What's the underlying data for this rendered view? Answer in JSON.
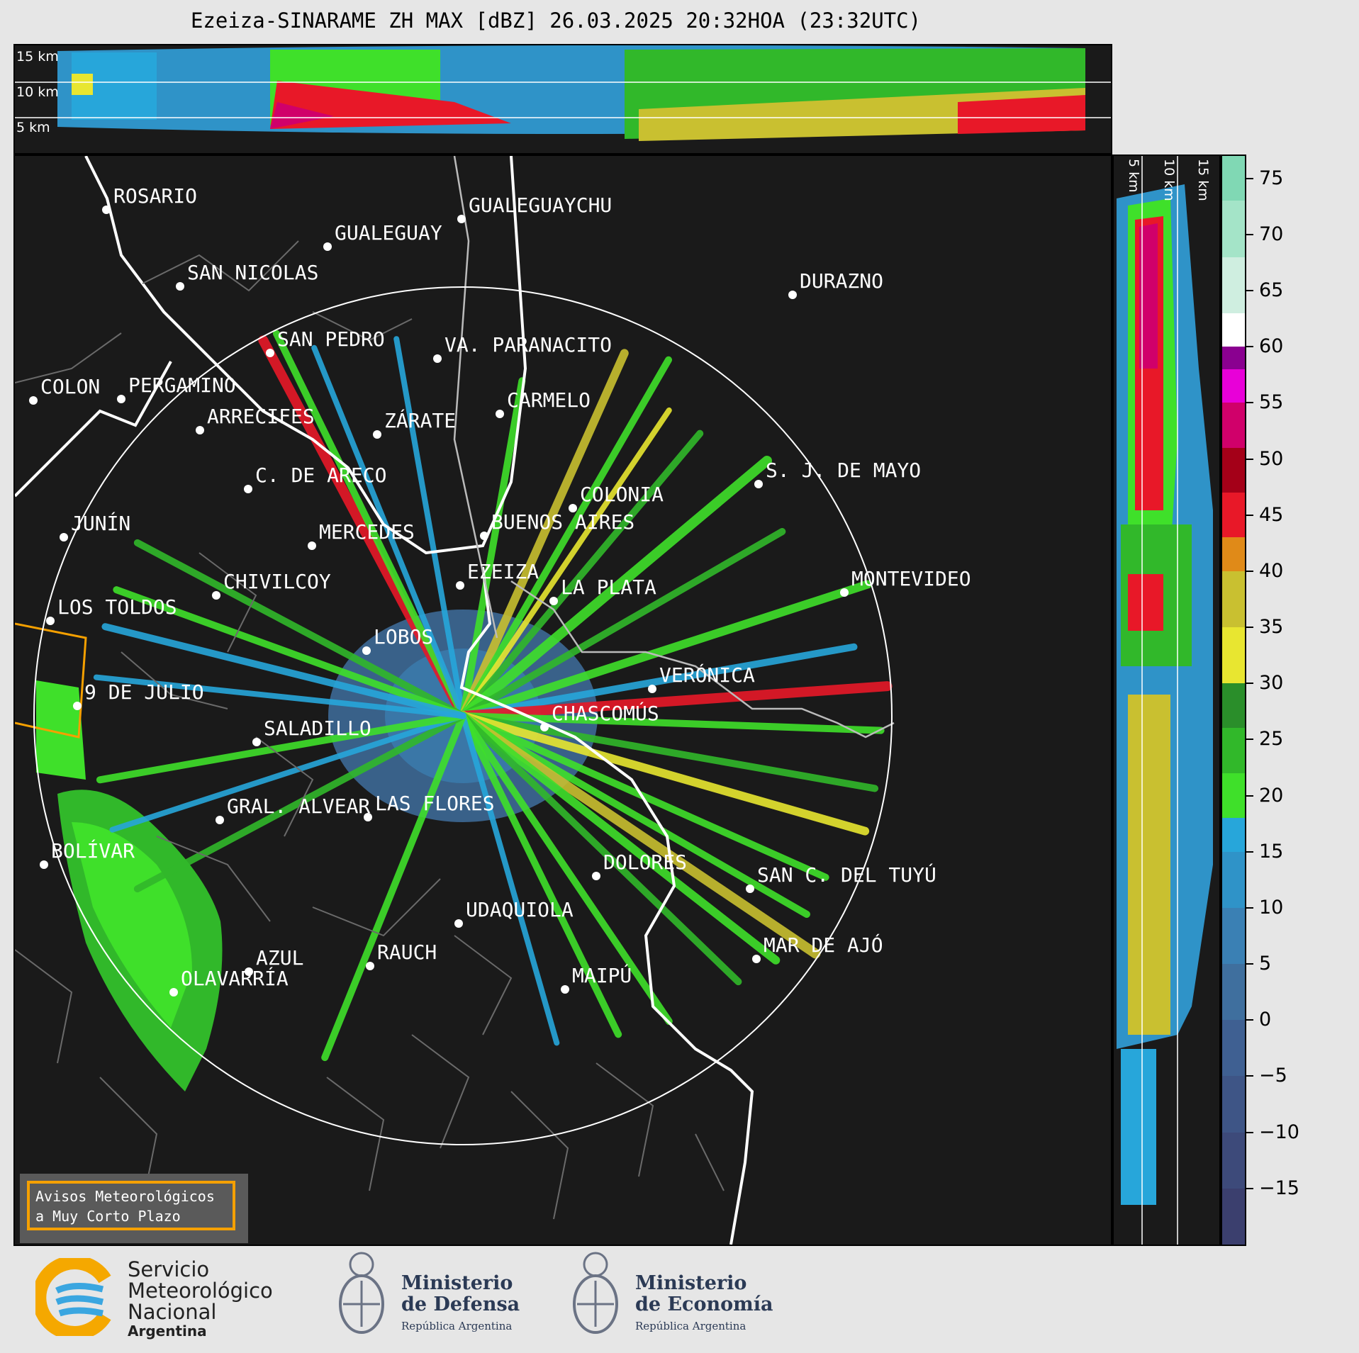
{
  "title": "Ezeiza-SINARAME ZH MAX [dBZ] 26.03.2025 20:32HOA (23:32UTC)",
  "top_panel": {
    "height_labels": [
      "15 km",
      "10 km",
      "5 km"
    ]
  },
  "side_panel": {
    "height_labels": [
      "5 km",
      "10 km",
      "15 km"
    ]
  },
  "colorbar": {
    "unit": "dBZ",
    "tick_labels": [
      "75",
      "70",
      "65",
      "60",
      "55",
      "50",
      "45",
      "40",
      "35",
      "30",
      "25",
      "20",
      "15",
      "10",
      "5",
      "0",
      "−5",
      "−10",
      "−15"
    ],
    "min": -20,
    "max": 77,
    "stops": [
      {
        "from": -20,
        "color": "#3b3f6e"
      },
      {
        "from": -15,
        "color": "#3d4a7a"
      },
      {
        "from": -10,
        "color": "#3e5586"
      },
      {
        "from": -5,
        "color": "#3f6092"
      },
      {
        "from": 0,
        "color": "#3f6f9e"
      },
      {
        "from": 5,
        "color": "#3a80b4"
      },
      {
        "from": 10,
        "color": "#2f93c8"
      },
      {
        "from": 15,
        "color": "#27a6da"
      },
      {
        "from": 18,
        "color": "#3fe02a"
      },
      {
        "from": 22,
        "color": "#31b82a"
      },
      {
        "from": 26,
        "color": "#2a8e2a"
      },
      {
        "from": 30,
        "color": "#e8e630"
      },
      {
        "from": 35,
        "color": "#c9c030"
      },
      {
        "from": 40,
        "color": "#e08a18"
      },
      {
        "from": 43,
        "color": "#e81828"
      },
      {
        "from": 47,
        "color": "#a40018"
      },
      {
        "from": 51,
        "color": "#d0006a"
      },
      {
        "from": 55,
        "color": "#e800d8"
      },
      {
        "from": 58,
        "color": "#8a0090"
      },
      {
        "from": 60,
        "color": "#ffffff"
      },
      {
        "from": 63,
        "color": "#cfeee0"
      },
      {
        "from": 68,
        "color": "#a4e4c8"
      },
      {
        "from": 73,
        "color": "#80d8b4"
      }
    ]
  },
  "cities": [
    {
      "name": "ROSARIO"
    },
    {
      "name": "GUALEGUAYCHU"
    },
    {
      "name": "GUALEGUAY"
    },
    {
      "name": "SAN NICOLAS"
    },
    {
      "name": "DURAZNO"
    },
    {
      "name": "SAN PEDRO"
    },
    {
      "name": "VA. PARANACITO"
    },
    {
      "name": "COLON"
    },
    {
      "name": "PERGAMINO"
    },
    {
      "name": "CARMELO"
    },
    {
      "name": "ARRECIFES"
    },
    {
      "name": "ZÁRATE"
    },
    {
      "name": "S. J. DE MAYO"
    },
    {
      "name": "C. DE ARECO"
    },
    {
      "name": "COLONIA"
    },
    {
      "name": "JUNÍN"
    },
    {
      "name": "BUENOS AIRES"
    },
    {
      "name": "MERCEDES"
    },
    {
      "name": "MONTEVIDEO"
    },
    {
      "name": "EZEIZA"
    },
    {
      "name": "CHIVILCOY"
    },
    {
      "name": "LA PLATA"
    },
    {
      "name": "LOS TOLDOS"
    },
    {
      "name": "LOBOS"
    },
    {
      "name": "VERÓNICA"
    },
    {
      "name": "9 DE JULIO"
    },
    {
      "name": "CHASCOMÚS"
    },
    {
      "name": "SALADILLO"
    },
    {
      "name": "GRAL. ALVEAR"
    },
    {
      "name": "LAS FLORES"
    },
    {
      "name": "BOLÍVAR"
    },
    {
      "name": "DOLORES"
    },
    {
      "name": "SAN C. DEL TUYÚ"
    },
    {
      "name": "UDAQUIOLA"
    },
    {
      "name": "MAR DE AJÓ"
    },
    {
      "name": "AZUL"
    },
    {
      "name": "RAUCH"
    },
    {
      "name": "OLAVARRÍA"
    },
    {
      "name": "MAIPÚ"
    }
  ],
  "alert_box": {
    "line1": "Avisos Meteorológicos",
    "line2": "a Muy Corto Plazo"
  },
  "footer": {
    "smn_line1": "Servicio",
    "smn_line2": "Meteorológico",
    "smn_line3": "Nacional",
    "smn_line4": "Argentina",
    "defensa_line1": "Ministerio",
    "defensa_line2": "de Defensa",
    "defensa_sub": "República Argentina",
    "economia_line1": "Ministerio",
    "economia_line2": "de Economía",
    "economia_sub": "República Argentina"
  }
}
